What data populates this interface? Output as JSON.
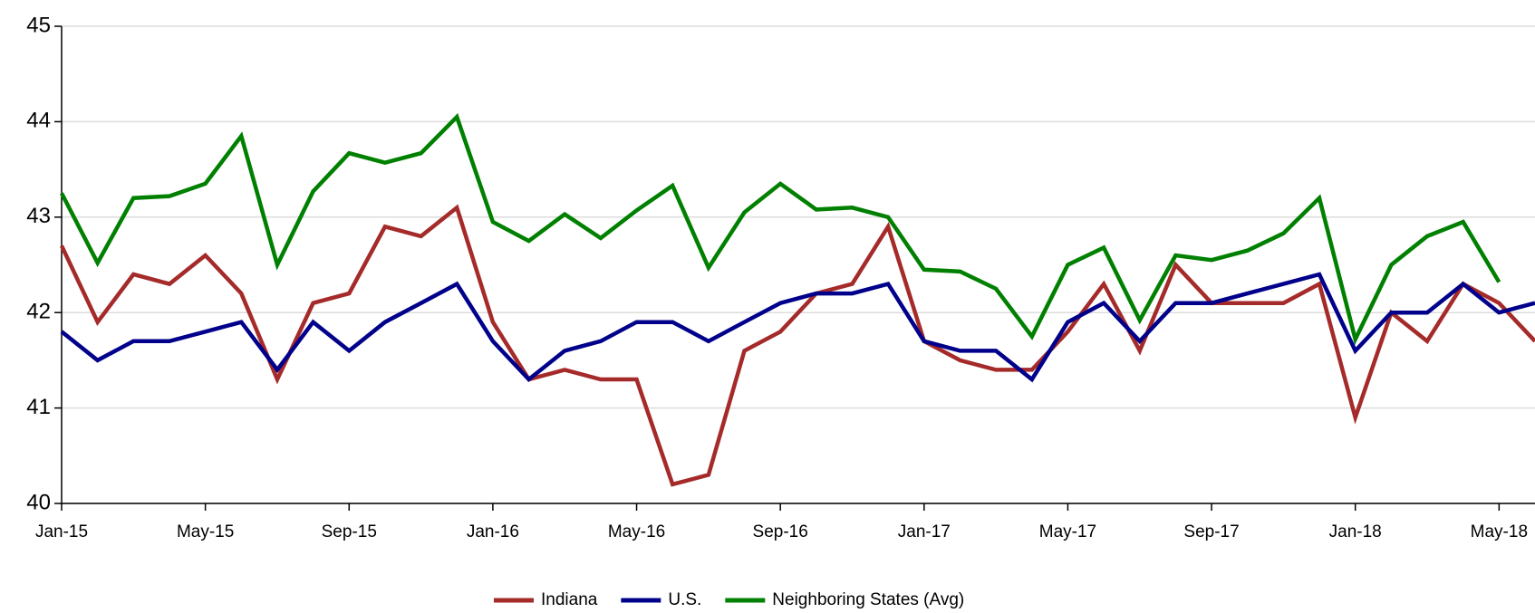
{
  "chart_data": {
    "type": "line",
    "categories": [
      "Jan-15",
      null,
      null,
      null,
      "May-15",
      null,
      null,
      null,
      "Sep-15",
      null,
      null,
      null,
      "Jan-16",
      null,
      null,
      null,
      "May-16",
      null,
      null,
      null,
      "Sep-16",
      null,
      null,
      null,
      "Jan-17",
      null,
      null,
      null,
      "May-17",
      null,
      null,
      null,
      "Sep-17",
      null,
      null,
      null,
      "Jan-18",
      null,
      null,
      null,
      "May-18",
      null
    ],
    "series": [
      {
        "name": "Indiana",
        "color": "#a52a2a",
        "values": [
          42.7,
          41.9,
          42.4,
          42.3,
          42.6,
          42.2,
          41.3,
          42.1,
          42.2,
          42.9,
          42.8,
          43.1,
          41.9,
          41.3,
          41.4,
          41.3,
          41.3,
          40.2,
          40.3,
          41.6,
          41.8,
          42.2,
          42.3,
          42.9,
          41.7,
          41.5,
          41.4,
          41.4,
          41.8,
          42.3,
          41.6,
          42.5,
          42.1,
          42.1,
          42.1,
          42.3,
          40.9,
          42.0,
          41.7,
          42.3,
          42.1,
          41.7
        ]
      },
      {
        "name": "U.S.",
        "color": "#00008b",
        "values": [
          41.8,
          41.5,
          41.7,
          41.7,
          41.8,
          41.9,
          41.4,
          41.9,
          41.6,
          41.9,
          42.1,
          42.3,
          41.7,
          41.3,
          41.6,
          41.7,
          41.9,
          41.9,
          41.7,
          41.9,
          42.1,
          42.2,
          42.2,
          42.3,
          41.7,
          41.6,
          41.6,
          41.3,
          41.9,
          42.1,
          41.7,
          42.1,
          42.1,
          42.2,
          42.3,
          42.4,
          41.6,
          42.0,
          42.0,
          42.3,
          42.0,
          42.1
        ]
      },
      {
        "name": "Neighboring States (Avg)",
        "color": "#008000",
        "values": [
          43.25,
          42.52,
          43.2,
          43.22,
          43.35,
          43.85,
          42.5,
          43.27,
          43.67,
          43.57,
          43.67,
          44.05,
          42.95,
          42.75,
          43.03,
          42.78,
          43.07,
          43.33,
          42.47,
          43.05,
          43.35,
          43.08,
          43.1,
          43.0,
          42.45,
          42.43,
          42.25,
          41.75,
          42.5,
          42.68,
          41.92,
          42.6,
          42.55,
          42.65,
          42.83,
          43.2,
          41.72,
          42.5,
          42.8,
          42.95,
          42.32,
          null
        ]
      }
    ],
    "ylim": [
      40,
      45
    ],
    "yticks": [
      40,
      41,
      42,
      43,
      44,
      45
    ],
    "grid": true,
    "legend": "bottom"
  }
}
